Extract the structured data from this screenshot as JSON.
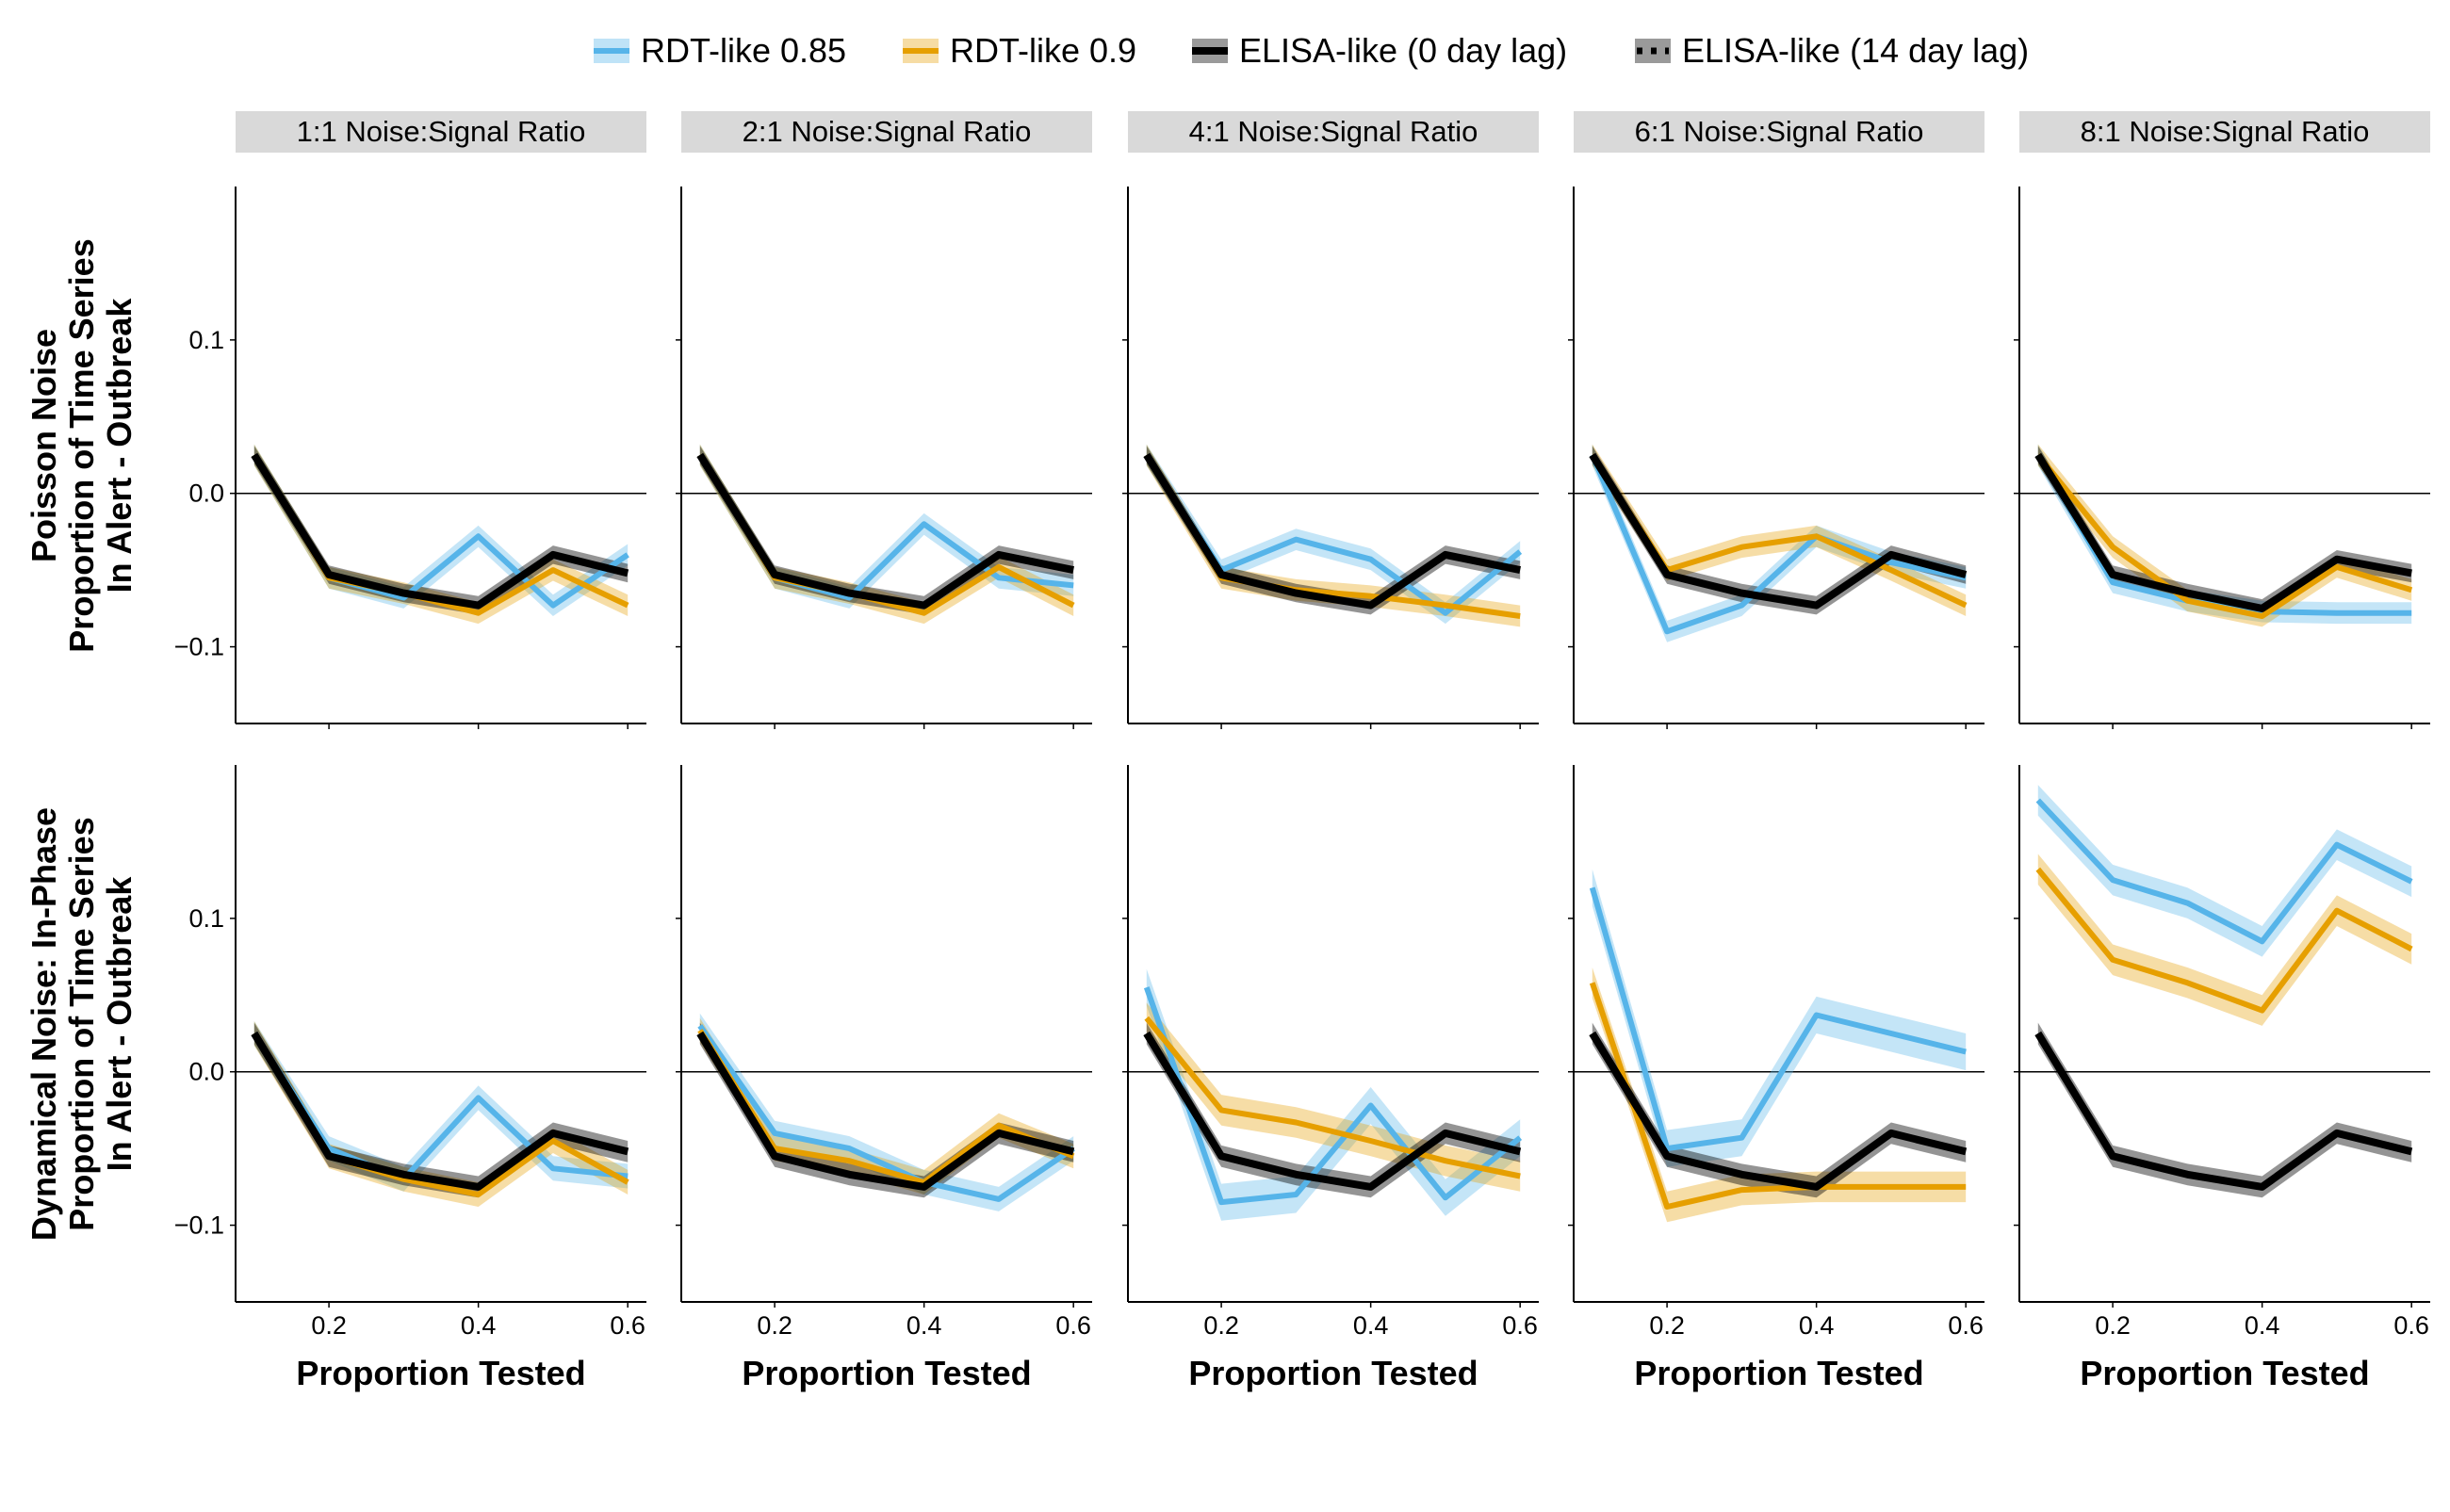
{
  "chart_data": {
    "type": "line",
    "legend": {
      "placement": "top",
      "entries": [
        {
          "label": "RDT-like 0.85",
          "color": "#56B4E9",
          "linestyle": "solid"
        },
        {
          "label": "RDT-like 0.9",
          "color": "#E69F00",
          "linestyle": "solid"
        },
        {
          "label": "ELISA-like (0 day lag)",
          "color": "#000000",
          "linestyle": "solid"
        },
        {
          "label": "ELISA-like (14 day lag)",
          "color": "#000000",
          "linestyle": "dotted"
        }
      ]
    },
    "xlabel": "Proportion Tested",
    "x": [
      0.1,
      0.2,
      0.3,
      0.4,
      0.5,
      0.6
    ],
    "x_ticks": [
      0.2,
      0.4,
      0.6
    ],
    "x_tick_labels": [
      "0.2",
      "0.4",
      "0.6"
    ],
    "xlim": [
      0.075,
      0.625
    ],
    "y_ticks": [
      -0.1,
      0.0,
      0.1
    ],
    "y_tick_labels": [
      "−0.1",
      "0.0",
      "0.1"
    ],
    "reference_line_y": 0,
    "columns": [
      "1:1 Noise:Signal Ratio",
      "2:1 Noise:Signal Ratio",
      "4:1 Noise:Signal Ratio",
      "6:1 Noise:Signal Ratio",
      "8:1 Noise:Signal Ratio"
    ],
    "rows": [
      {
        "title_lines": [
          "Poisson Noise",
          "Proportion of Time Series",
          "In Alert - Outbreak"
        ],
        "ylim": [
          -0.15,
          0.2
        ],
        "panels": [
          {
            "series": [
              {
                "name": "RDT-like 0.85",
                "values": [
                  0.025,
                  -0.055,
                  -0.068,
                  -0.028,
                  -0.073,
                  -0.04
                ],
                "band": 0.007
              },
              {
                "name": "RDT-like 0.9",
                "values": [
                  0.025,
                  -0.055,
                  -0.065,
                  -0.078,
                  -0.05,
                  -0.073
                ],
                "band": 0.007
              },
              {
                "name": "ELISA-like (0 day lag)",
                "values": [
                  0.025,
                  -0.053,
                  -0.065,
                  -0.073,
                  -0.04,
                  -0.052
                ],
                "band": 0.006
              },
              {
                "name": "ELISA-like (14 day lag)",
                "values": [
                  0.025,
                  -0.053,
                  -0.065,
                  -0.073,
                  -0.04,
                  -0.052
                ],
                "band": 0.006
              }
            ]
          },
          {
            "series": [
              {
                "name": "RDT-like 0.85",
                "values": [
                  0.025,
                  -0.055,
                  -0.068,
                  -0.02,
                  -0.055,
                  -0.06
                ],
                "band": 0.007
              },
              {
                "name": "RDT-like 0.9",
                "values": [
                  0.025,
                  -0.055,
                  -0.065,
                  -0.078,
                  -0.048,
                  -0.073
                ],
                "band": 0.007
              },
              {
                "name": "ELISA-like (0 day lag)",
                "values": [
                  0.025,
                  -0.053,
                  -0.065,
                  -0.073,
                  -0.04,
                  -0.05
                ],
                "band": 0.006
              },
              {
                "name": "ELISA-like (14 day lag)",
                "values": [
                  0.025,
                  -0.053,
                  -0.065,
                  -0.073,
                  -0.04,
                  -0.05
                ],
                "band": 0.006
              }
            ]
          },
          {
            "series": [
              {
                "name": "RDT-like 0.85",
                "values": [
                  0.025,
                  -0.05,
                  -0.03,
                  -0.043,
                  -0.078,
                  -0.038
                ],
                "band": 0.007
              },
              {
                "name": "RDT-like 0.9",
                "values": [
                  0.025,
                  -0.055,
                  -0.063,
                  -0.067,
                  -0.073,
                  -0.08
                ],
                "band": 0.007
              },
              {
                "name": "ELISA-like (0 day lag)",
                "values": [
                  0.025,
                  -0.053,
                  -0.065,
                  -0.073,
                  -0.04,
                  -0.05
                ],
                "band": 0.006
              },
              {
                "name": "ELISA-like (14 day lag)",
                "values": [
                  0.025,
                  -0.053,
                  -0.065,
                  -0.073,
                  -0.04,
                  -0.05
                ],
                "band": 0.006
              }
            ]
          },
          {
            "series": [
              {
                "name": "RDT-like 0.85",
                "values": [
                  0.025,
                  -0.09,
                  -0.073,
                  -0.028,
                  -0.045,
                  -0.055
                ],
                "band": 0.007
              },
              {
                "name": "RDT-like 0.9",
                "values": [
                  0.025,
                  -0.05,
                  -0.035,
                  -0.028,
                  -0.05,
                  -0.073
                ],
                "band": 0.007
              },
              {
                "name": "ELISA-like (0 day lag)",
                "values": [
                  0.025,
                  -0.053,
                  -0.065,
                  -0.073,
                  -0.04,
                  -0.053
                ],
                "band": 0.006
              },
              {
                "name": "ELISA-like (14 day lag)",
                "values": [
                  0.025,
                  -0.053,
                  -0.065,
                  -0.073,
                  -0.04,
                  -0.053
                ],
                "band": 0.006
              }
            ]
          },
          {
            "series": [
              {
                "name": "RDT-like 0.85",
                "values": [
                  0.025,
                  -0.058,
                  -0.07,
                  -0.077,
                  -0.078,
                  -0.078
                ],
                "band": 0.007
              },
              {
                "name": "RDT-like 0.9",
                "values": [
                  0.025,
                  -0.035,
                  -0.07,
                  -0.08,
                  -0.048,
                  -0.063
                ],
                "band": 0.007
              },
              {
                "name": "ELISA-like (0 day lag)",
                "values": [
                  0.025,
                  -0.053,
                  -0.065,
                  -0.075,
                  -0.043,
                  -0.052
                ],
                "band": 0.006
              },
              {
                "name": "ELISA-like (14 day lag)",
                "values": [
                  0.025,
                  -0.053,
                  -0.065,
                  -0.075,
                  -0.043,
                  -0.052
                ],
                "band": 0.006
              }
            ]
          }
        ]
      },
      {
        "title_lines": [
          "Dynamical Noise: In-Phase",
          "Proportion of Time Series",
          "In Alert - Outbreak"
        ],
        "ylim": [
          -0.15,
          0.2
        ],
        "panels": [
          {
            "series": [
              {
                "name": "RDT-like 0.85",
                "values": [
                  0.025,
                  -0.05,
                  -0.07,
                  -0.017,
                  -0.063,
                  -0.068
                ],
                "band": 0.008
              },
              {
                "name": "RDT-like 0.9",
                "values": [
                  0.025,
                  -0.055,
                  -0.07,
                  -0.08,
                  -0.045,
                  -0.072
                ],
                "band": 0.008
              },
              {
                "name": "ELISA-like (0 day lag)",
                "values": [
                  0.025,
                  -0.055,
                  -0.067,
                  -0.075,
                  -0.04,
                  -0.052
                ],
                "band": 0.007
              },
              {
                "name": "ELISA-like (14 day lag)",
                "values": [
                  0.025,
                  -0.055,
                  -0.067,
                  -0.075,
                  -0.04,
                  -0.052
                ],
                "band": 0.007
              }
            ]
          },
          {
            "series": [
              {
                "name": "RDT-like 0.85",
                "values": [
                  0.03,
                  -0.04,
                  -0.05,
                  -0.072,
                  -0.083,
                  -0.05
                ],
                "band": 0.008
              },
              {
                "name": "RDT-like 0.9",
                "values": [
                  0.027,
                  -0.05,
                  -0.058,
                  -0.072,
                  -0.035,
                  -0.055
                ],
                "band": 0.008
              },
              {
                "name": "ELISA-like (0 day lag)",
                "values": [
                  0.025,
                  -0.055,
                  -0.067,
                  -0.075,
                  -0.04,
                  -0.052
                ],
                "band": 0.007
              },
              {
                "name": "ELISA-like (14 day lag)",
                "values": [
                  0.025,
                  -0.055,
                  -0.067,
                  -0.075,
                  -0.04,
                  -0.052
                ],
                "band": 0.007
              }
            ]
          },
          {
            "series": [
              {
                "name": "RDT-like 0.85",
                "values": [
                  0.055,
                  -0.085,
                  -0.08,
                  -0.022,
                  -0.082,
                  -0.043
                ],
                "band": 0.012
              },
              {
                "name": "RDT-like 0.9",
                "values": [
                  0.035,
                  -0.025,
                  -0.033,
                  -0.045,
                  -0.058,
                  -0.068
                ],
                "band": 0.01
              },
              {
                "name": "ELISA-like (0 day lag)",
                "values": [
                  0.025,
                  -0.055,
                  -0.067,
                  -0.075,
                  -0.04,
                  -0.052
                ],
                "band": 0.007
              },
              {
                "name": "ELISA-like (14 day lag)",
                "values": [
                  0.025,
                  -0.055,
                  -0.067,
                  -0.075,
                  -0.04,
                  -0.052
                ],
                "band": 0.007
              }
            ]
          },
          {
            "series": [
              {
                "name": "RDT-like 0.85",
                "values": [
                  0.12,
                  -0.05,
                  -0.043,
                  0.037,
                  0.025,
                  0.013
                ],
                "band": 0.012
              },
              {
                "name": "RDT-like 0.9",
                "values": [
                  0.058,
                  -0.088,
                  -0.077,
                  -0.075,
                  -0.075,
                  -0.075
                ],
                "band": 0.01
              },
              {
                "name": "ELISA-like (0 day lag)",
                "values": [
                  0.025,
                  -0.055,
                  -0.067,
                  -0.075,
                  -0.04,
                  -0.052
                ],
                "band": 0.007
              },
              {
                "name": "ELISA-like (14 day lag)",
                "values": [
                  0.025,
                  -0.055,
                  -0.067,
                  -0.075,
                  -0.04,
                  -0.052
                ],
                "band": 0.007
              }
            ]
          },
          {
            "series": [
              {
                "name": "RDT-like 0.85",
                "values": [
                  0.177,
                  0.125,
                  0.11,
                  0.085,
                  0.148,
                  0.124
                ],
                "band": 0.01
              },
              {
                "name": "RDT-like 0.9",
                "values": [
                  0.132,
                  0.073,
                  0.058,
                  0.04,
                  0.105,
                  0.08
                ],
                "band": 0.01
              },
              {
                "name": "ELISA-like (0 day lag)",
                "values": [
                  0.025,
                  -0.055,
                  -0.067,
                  -0.075,
                  -0.04,
                  -0.052
                ],
                "band": 0.007
              },
              {
                "name": "ELISA-like (14 day lag)",
                "values": [
                  0.025,
                  -0.055,
                  -0.067,
                  -0.075,
                  -0.04,
                  -0.052
                ],
                "band": 0.007
              }
            ]
          }
        ]
      }
    ],
    "grid": false
  }
}
